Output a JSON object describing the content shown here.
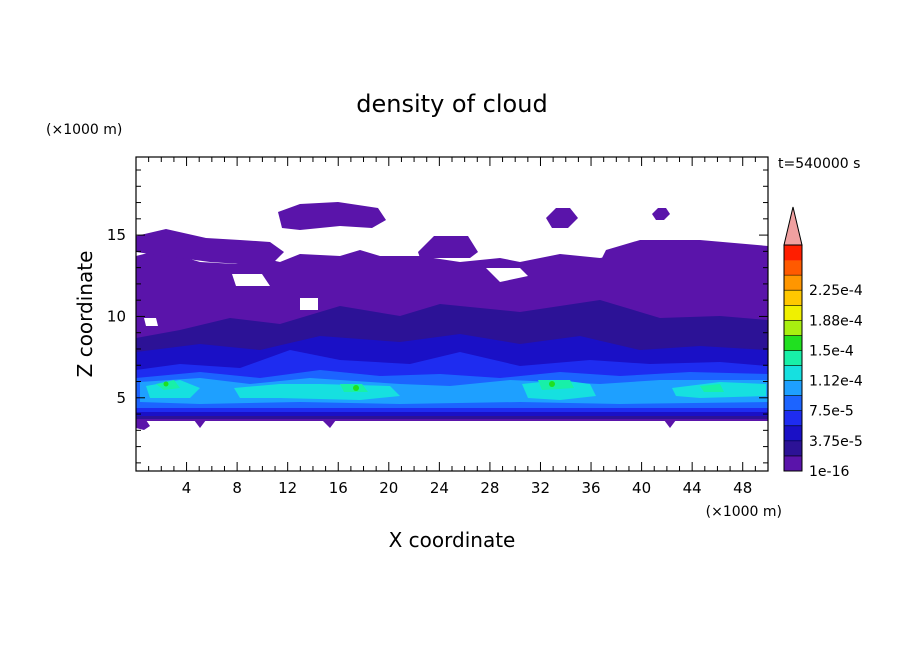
{
  "chart_data": {
    "type": "heatmap",
    "title": "density of cloud",
    "xlabel": "X coordinate",
    "ylabel": "Z coordinate",
    "x_unit": "(×1000 m)",
    "y_unit": "(×1000 m)",
    "time_label": "t=540000 s",
    "xlim": [
      0,
      50
    ],
    "ylim": [
      0.5,
      19.8
    ],
    "x_ticks": [
      4,
      8,
      12,
      16,
      20,
      24,
      28,
      32,
      36,
      40,
      44,
      48
    ],
    "y_ticks": [
      5,
      10,
      15
    ],
    "colorbar": {
      "levels": [
        "1e-16",
        "",
        "3.75e-5",
        "",
        "7.5e-5",
        "",
        "1.12e-4",
        "",
        "1.5e-4",
        "",
        "1.88e-4",
        "",
        "2.25e-4",
        ""
      ],
      "colors": [
        "#5a14aa",
        "#2c1296",
        "#1a10c6",
        "#1e2cf0",
        "#1c64ff",
        "#1ea0ff",
        "#16e0e0",
        "#18f0a8",
        "#20e020",
        "#a8f010",
        "#f0f000",
        "#ffc800",
        "#ff9600",
        "#ff5a00",
        "#ff1e00"
      ],
      "overflow_color": "#f0a0a0",
      "grid": false,
      "legend_position": "right"
    },
    "layers": [
      {
        "level": "1e-16",
        "z_bottom": 3.5,
        "z_top": 13.7,
        "note": "cloud deck spanning full domain"
      },
      {
        "level": "3.75e-5",
        "z_bottom": 3.8,
        "z_top": 8.5
      },
      {
        "level": "7.5e-5",
        "z_bottom": 4.2,
        "z_top": 6.6
      },
      {
        "level": "1.12e-4",
        "z_bottom": 4.8,
        "z_top": 6.0,
        "peaks_x": [
          3,
          17.5,
          33,
          45
        ]
      }
    ]
  }
}
